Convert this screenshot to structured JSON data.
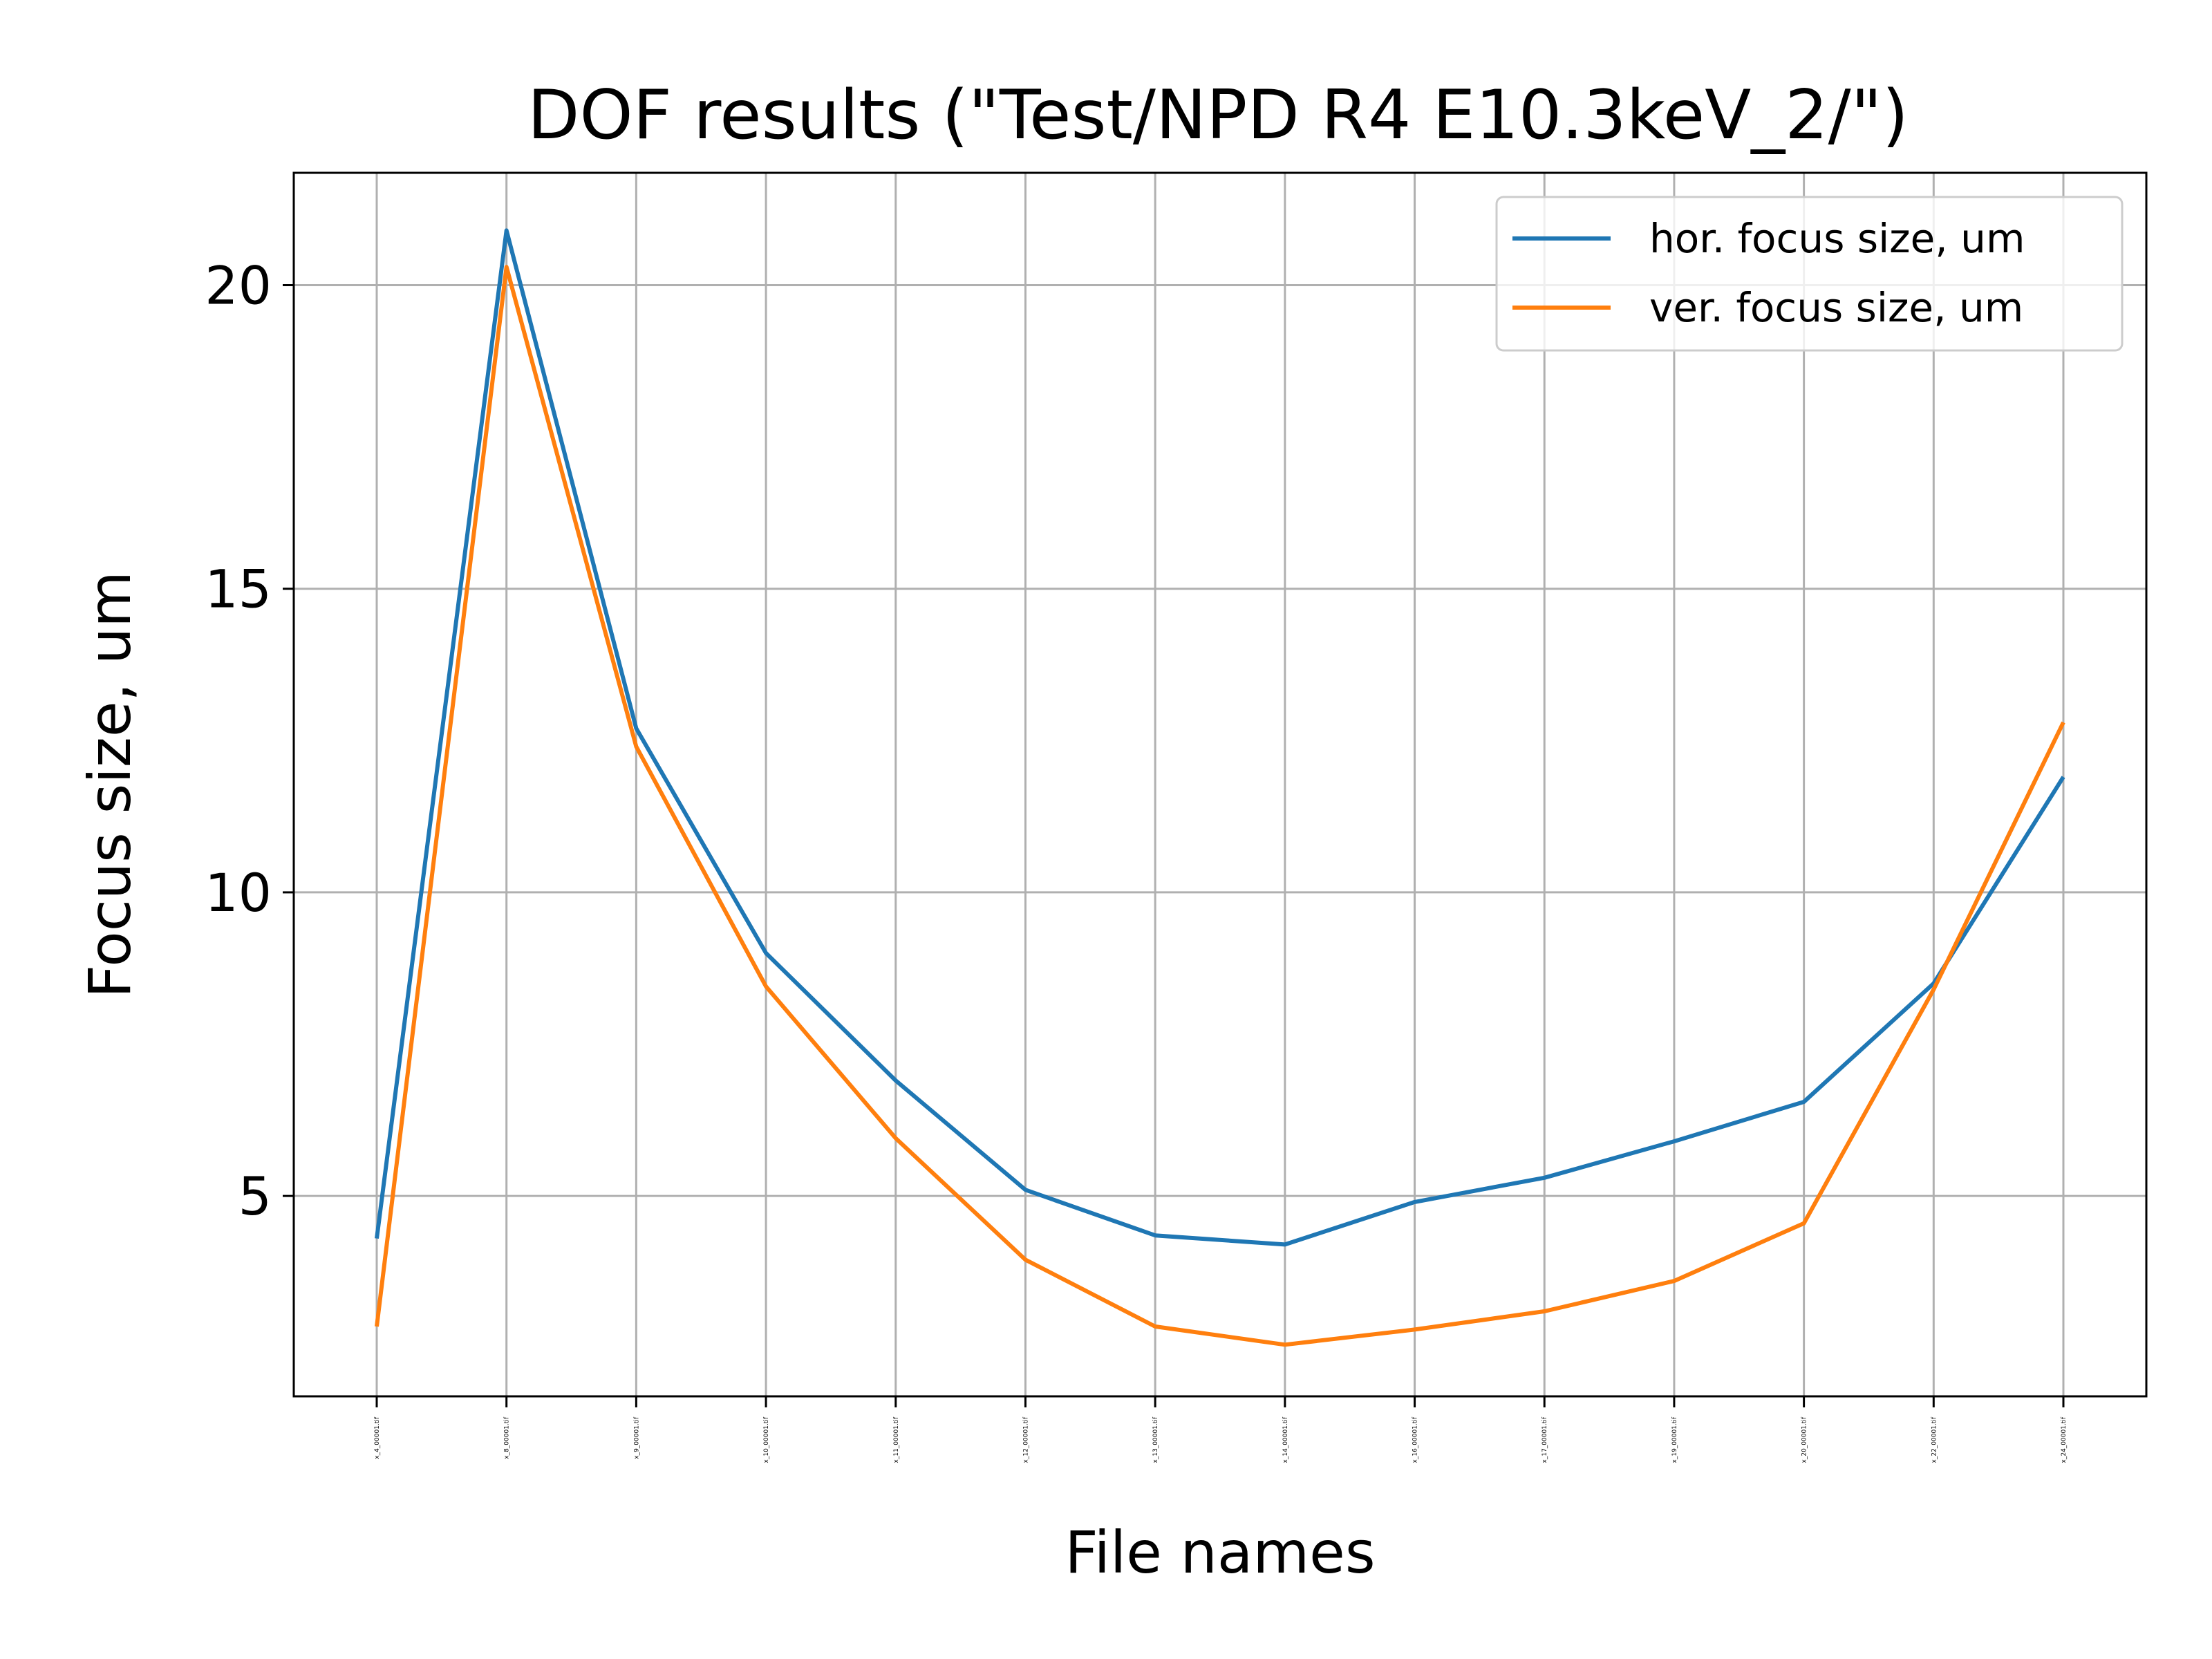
{
  "chart_data": {
    "type": "line",
    "title": "DOF results (\"Test/NPD R4 E10.3keV_2/\")",
    "xlabel": "File names",
    "ylabel": "Focus size, um",
    "categories": [
      "x_4_00001.tif",
      "x_8_00001.tif",
      "x_9_00001.tif",
      "x_10_00001.tif",
      "x_11_00001.tif",
      "x_12_00001.tif",
      "x_13_00001.tif",
      "x_14_00001.tif",
      "x_16_00001.tif",
      "x_17_00001.tif",
      "x_19_00001.tif",
      "x_20_00001.tif",
      "x_22_00001.tif",
      "x_24_00001.tif"
    ],
    "series": [
      {
        "name": "hor. focus size, um",
        "color": "#1f77b4",
        "values": [
          4.3,
          20.9,
          12.7,
          9.0,
          6.9,
          5.1,
          4.35,
          4.2,
          4.9,
          5.3,
          5.9,
          6.55,
          8.5,
          11.9
        ]
      },
      {
        "name": "ver. focus size, um",
        "color": "#ff7f0e",
        "values": [
          2.85,
          20.3,
          12.4,
          8.45,
          5.95,
          3.95,
          2.85,
          2.55,
          2.8,
          3.1,
          3.6,
          4.55,
          8.4,
          12.8
        ]
      }
    ],
    "yticks": [
      5,
      10,
      15,
      20
    ],
    "ylim": [
      1.7,
      21.85
    ],
    "grid": true,
    "legend_position": "upper right"
  }
}
